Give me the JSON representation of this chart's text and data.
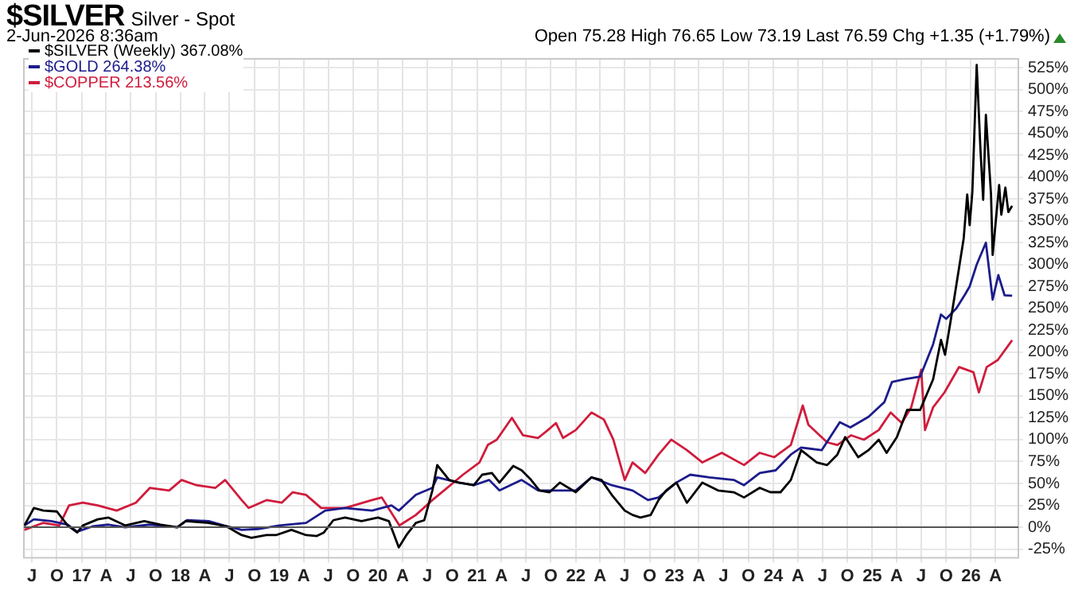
{
  "chart_data": {
    "type": "line",
    "title": "$SILVER",
    "subtitle": "Silver - Spot",
    "annotations": [
      "2-Jun-2026 8:36am",
      "Open 75.28 High 76.65 Low 73.19 Last 76.59 Chg +1.35 (+1.79%)"
    ],
    "legend": "top left",
    "grid": true,
    "marker": "none",
    "line_style": "solid",
    "xlim": [
      "2016-06-01",
      "2026-06-25"
    ],
    "xticks": [
      {
        "value": "2016-07-01",
        "label": "J"
      },
      {
        "value": "2016-10-01",
        "label": "O"
      },
      {
        "value": "2017-01-01",
        "label": "17"
      },
      {
        "value": "2017-04-01",
        "label": "A"
      },
      {
        "value": "2017-07-01",
        "label": "J"
      },
      {
        "value": "2017-10-01",
        "label": "O"
      },
      {
        "value": "2018-01-01",
        "label": "18"
      },
      {
        "value": "2018-04-01",
        "label": "A"
      },
      {
        "value": "2018-07-01",
        "label": "J"
      },
      {
        "value": "2018-10-01",
        "label": "O"
      },
      {
        "value": "2019-01-01",
        "label": "19"
      },
      {
        "value": "2019-04-01",
        "label": "A"
      },
      {
        "value": "2019-07-01",
        "label": "J"
      },
      {
        "value": "2019-10-01",
        "label": "O"
      },
      {
        "value": "2020-01-01",
        "label": "20"
      },
      {
        "value": "2020-04-01",
        "label": "A"
      },
      {
        "value": "2020-07-01",
        "label": "J"
      },
      {
        "value": "2020-10-01",
        "label": "O"
      },
      {
        "value": "2021-01-01",
        "label": "21"
      },
      {
        "value": "2021-04-01",
        "label": "A"
      },
      {
        "value": "2021-07-01",
        "label": "J"
      },
      {
        "value": "2021-10-01",
        "label": "O"
      },
      {
        "value": "2022-01-01",
        "label": "22"
      },
      {
        "value": "2022-04-01",
        "label": "A"
      },
      {
        "value": "2022-07-01",
        "label": "J"
      },
      {
        "value": "2022-10-01",
        "label": "O"
      },
      {
        "value": "2023-01-01",
        "label": "23"
      },
      {
        "value": "2023-04-01",
        "label": "A"
      },
      {
        "value": "2023-07-01",
        "label": "J"
      },
      {
        "value": "2023-10-01",
        "label": "O"
      },
      {
        "value": "2024-01-01",
        "label": "24"
      },
      {
        "value": "2024-04-01",
        "label": "A"
      },
      {
        "value": "2024-07-01",
        "label": "J"
      },
      {
        "value": "2024-10-01",
        "label": "O"
      },
      {
        "value": "2025-01-01",
        "label": "25"
      },
      {
        "value": "2025-04-01",
        "label": "A"
      },
      {
        "value": "2025-07-01",
        "label": "J"
      },
      {
        "value": "2025-10-01",
        "label": "O"
      },
      {
        "value": "2026-01-01",
        "label": "26"
      },
      {
        "value": "2026-04-01",
        "label": "A"
      }
    ],
    "ylim": [
      -35,
      535
    ],
    "yticks": [
      {
        "value": -25,
        "label": "-25%"
      },
      {
        "value": 0,
        "label": "0%"
      },
      {
        "value": 25,
        "label": "25%"
      },
      {
        "value": 50,
        "label": "50%"
      },
      {
        "value": 75,
        "label": "75%"
      },
      {
        "value": 100,
        "label": "100%"
      },
      {
        "value": 125,
        "label": "125%"
      },
      {
        "value": 150,
        "label": "150%"
      },
      {
        "value": 175,
        "label": "175%"
      },
      {
        "value": 200,
        "label": "200%"
      },
      {
        "value": 225,
        "label": "225%"
      },
      {
        "value": 250,
        "label": "250%"
      },
      {
        "value": 275,
        "label": "275%"
      },
      {
        "value": 300,
        "label": "300%"
      },
      {
        "value": 325,
        "label": "325%"
      },
      {
        "value": 350,
        "label": "350%"
      },
      {
        "value": 375,
        "label": "375%"
      },
      {
        "value": 400,
        "label": "400%"
      },
      {
        "value": 425,
        "label": "425%"
      },
      {
        "value": 450,
        "label": "450%"
      },
      {
        "value": 475,
        "label": "475%"
      },
      {
        "value": 500,
        "label": "500%"
      },
      {
        "value": 525,
        "label": "525%"
      }
    ],
    "ref_lines": [
      {
        "axis": "y",
        "value": 0,
        "color": "#555555"
      }
    ],
    "series": [
      {
        "name": "$SILVER (Weekly) 367.08%",
        "color": "#000000",
        "x": [
          "2016-06-03",
          "2016-07-08",
          "2016-08-12",
          "2016-10-01",
          "2016-11-10",
          "2016-12-15",
          "2017-01-05",
          "2017-03-01",
          "2017-04-10",
          "2017-06-10",
          "2017-08-20",
          "2017-10-20",
          "2017-12-20",
          "2018-01-20",
          "2018-04-15",
          "2018-06-20",
          "2018-08-15",
          "2018-09-20",
          "2018-11-15",
          "2018-12-20",
          "2019-02-15",
          "2019-04-10",
          "2019-05-20",
          "2019-06-15",
          "2019-07-20",
          "2019-09-01",
          "2019-11-01",
          "2020-01-01",
          "2020-02-10",
          "2020-03-18",
          "2020-04-15",
          "2020-05-20",
          "2020-06-20",
          "2020-07-20",
          "2020-08-07",
          "2020-09-20",
          "2020-10-25",
          "2020-12-20",
          "2021-01-20",
          "2021-02-25",
          "2021-03-25",
          "2021-05-15",
          "2021-06-15",
          "2021-07-20",
          "2021-08-20",
          "2021-09-26",
          "2021-11-03",
          "2022-01-01",
          "2022-02-28",
          "2022-04-06",
          "2022-05-14",
          "2022-07-01",
          "2022-07-30",
          "2022-08-28",
          "2022-10-05",
          "2022-11-03",
          "2022-12-01",
          "2023-01-08",
          "2023-02-16",
          "2023-04-14",
          "2023-06-11",
          "2023-08-08",
          "2023-09-15",
          "2023-11-12",
          "2023-12-21",
          "2024-01-28",
          "2024-03-06",
          "2024-04-13",
          "2024-06-10",
          "2024-07-18",
          "2024-08-25",
          "2024-09-23",
          "2024-11-10",
          "2024-12-18",
          "2025-01-25",
          "2025-02-23",
          "2025-04-02",
          "2025-05-10",
          "2025-06-27",
          "2025-08-14",
          "2025-09-12",
          "2025-09-27",
          "2025-10-20",
          "2025-11-08",
          "2025-12-05",
          "2025-12-18",
          "2025-12-27",
          "2026-01-06",
          "2026-01-22",
          "2026-02-05",
          "2026-02-15",
          "2026-02-25",
          "2026-03-16",
          "2026-03-22",
          "2026-04-15",
          "2026-04-23",
          "2026-05-08",
          "2026-05-19",
          "2026-06-02"
        ],
        "values": [
          2,
          22,
          19,
          18,
          2,
          -6,
          2,
          9,
          11,
          2,
          7,
          3,
          0,
          7,
          5,
          1,
          -9,
          -12,
          -9,
          -9,
          -3,
          -9,
          -10,
          -6,
          8,
          11,
          7,
          11,
          7,
          -23,
          -9,
          5,
          8,
          42,
          71,
          54,
          51,
          48,
          60,
          62,
          51,
          70,
          65,
          54,
          42,
          40,
          51,
          40,
          57,
          54,
          37,
          19,
          14,
          11,
          14,
          31,
          42,
          51,
          28,
          51,
          42,
          40,
          34,
          45,
          40,
          40,
          54,
          88,
          74,
          71,
          83,
          103,
          80,
          88,
          100,
          85,
          103,
          134,
          134,
          169,
          214,
          197,
          240,
          277,
          330,
          380,
          345,
          383,
          528,
          431,
          374,
          471,
          380,
          311,
          391,
          357,
          388,
          360,
          367.08
        ]
      },
      {
        "name": "$GOLD 264.38%",
        "color": "#1c1c8c",
        "x": [
          "2016-06-03",
          "2016-07-08",
          "2016-09-10",
          "2016-11-10",
          "2016-12-15",
          "2017-02-10",
          "2017-04-10",
          "2017-06-10",
          "2017-09-10",
          "2017-12-20",
          "2018-01-25",
          "2018-04-15",
          "2018-06-10",
          "2018-08-15",
          "2018-10-15",
          "2019-01-01",
          "2019-04-10",
          "2019-06-20",
          "2019-09-01",
          "2019-12-10",
          "2020-02-20",
          "2020-03-18",
          "2020-05-20",
          "2020-07-20",
          "2020-08-07",
          "2020-10-25",
          "2020-12-20",
          "2021-02-15",
          "2021-03-25",
          "2021-06-15",
          "2021-08-15",
          "2021-11-03",
          "2022-01-01",
          "2022-02-28",
          "2022-05-14",
          "2022-07-30",
          "2022-09-25",
          "2022-11-03",
          "2023-01-08",
          "2023-02-28",
          "2023-05-10",
          "2023-08-08",
          "2023-09-15",
          "2023-11-12",
          "2024-01-10",
          "2024-03-06",
          "2024-04-13",
          "2024-06-28",
          "2024-09-03",
          "2024-10-12",
          "2024-12-18",
          "2025-02-15",
          "2025-03-15",
          "2025-05-01",
          "2025-06-27",
          "2025-08-14",
          "2025-09-12",
          "2025-10-01",
          "2025-11-08",
          "2025-12-10",
          "2025-12-27",
          "2026-01-22",
          "2026-02-25",
          "2026-03-22",
          "2026-04-12",
          "2026-05-05",
          "2026-06-02"
        ],
        "values": [
          2,
          9,
          7,
          3,
          -5,
          1,
          3,
          0,
          3,
          0,
          8,
          7,
          2,
          -3,
          -2,
          2,
          5,
          19,
          22,
          19,
          25,
          19,
          37,
          45,
          57,
          51,
          48,
          54,
          42,
          54,
          42,
          42,
          42,
          57,
          48,
          42,
          31,
          34,
          51,
          60,
          57,
          54,
          48,
          62,
          65,
          83,
          91,
          88,
          120,
          114,
          126,
          143,
          166,
          169,
          172,
          209,
          243,
          238,
          250,
          266,
          275,
          300,
          325,
          260,
          288,
          265,
          264.38
        ]
      },
      {
        "name": "$COPPER 213.56%",
        "color": "#d01c3c",
        "x": [
          "2016-06-03",
          "2016-08-12",
          "2016-10-10",
          "2016-11-15",
          "2017-01-05",
          "2017-03-01",
          "2017-05-10",
          "2017-07-20",
          "2017-09-10",
          "2017-11-20",
          "2018-01-05",
          "2018-03-01",
          "2018-05-10",
          "2018-06-15",
          "2018-08-15",
          "2018-09-10",
          "2018-11-15",
          "2019-01-10",
          "2019-02-20",
          "2019-04-10",
          "2019-06-05",
          "2019-09-01",
          "2019-12-10",
          "2020-01-15",
          "2020-03-20",
          "2020-05-20",
          "2020-07-20",
          "2020-09-01",
          "2020-11-10",
          "2021-01-10",
          "2021-02-10",
          "2021-03-15",
          "2021-05-10",
          "2021-06-20",
          "2021-08-15",
          "2021-09-20",
          "2021-10-20",
          "2021-11-15",
          "2022-01-01",
          "2022-02-28",
          "2022-04-15",
          "2022-05-20",
          "2022-07-01",
          "2022-07-30",
          "2022-09-15",
          "2022-11-03",
          "2022-12-20",
          "2023-02-16",
          "2023-04-14",
          "2023-06-25",
          "2023-09-15",
          "2023-11-12",
          "2024-01-05",
          "2024-03-06",
          "2024-04-19",
          "2024-05-10",
          "2024-07-18",
          "2024-08-25",
          "2024-10-15",
          "2024-12-01",
          "2025-01-25",
          "2025-03-10",
          "2025-04-20",
          "2025-05-25",
          "2025-07-01",
          "2025-07-15",
          "2025-08-14",
          "2025-09-25",
          "2025-11-18",
          "2026-01-10",
          "2026-01-30",
          "2026-02-28",
          "2026-04-10",
          "2026-06-02"
        ],
        "values": [
          -3,
          5,
          2,
          25,
          28,
          25,
          19,
          28,
          45,
          42,
          54,
          48,
          45,
          54,
          31,
          22,
          31,
          28,
          40,
          37,
          22,
          22,
          31,
          34,
          2,
          14,
          31,
          42,
          60,
          74,
          94,
          100,
          125,
          105,
          102,
          111,
          119,
          102,
          111,
          131,
          123,
          100,
          54,
          74,
          62,
          83,
          100,
          88,
          74,
          85,
          71,
          85,
          80,
          94,
          139,
          117,
          97,
          94,
          105,
          100,
          111,
          131,
          119,
          137,
          180,
          111,
          137,
          154,
          183,
          177,
          154,
          183,
          191,
          213.56
        ]
      }
    ]
  }
}
